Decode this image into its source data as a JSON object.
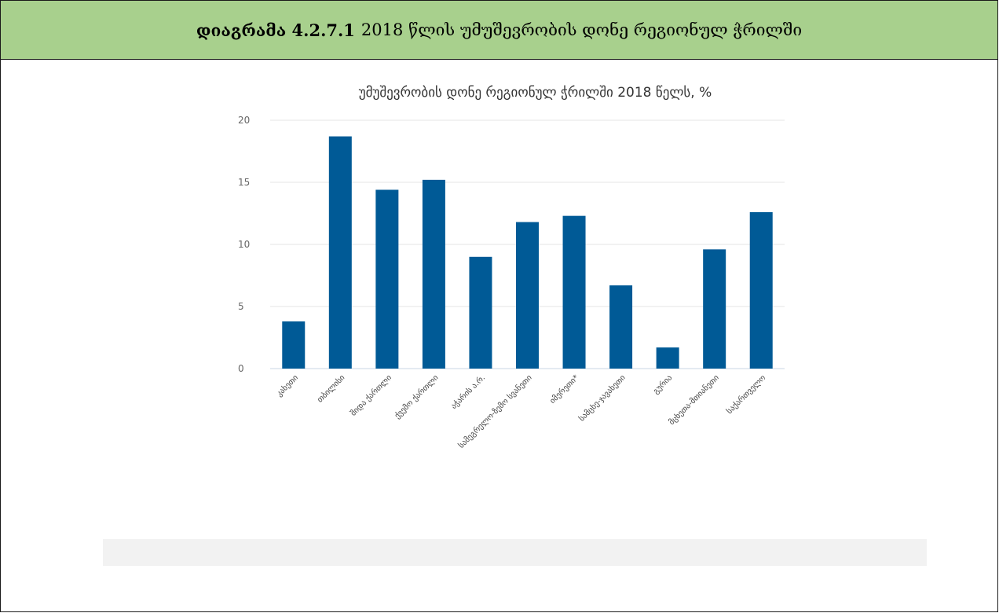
{
  "header": {
    "lead": "დიაგრამა 4.2.7.1",
    "text": "2018 წლის უმუშევრობის დონე რეგიონულ ჭრილში"
  },
  "colors": {
    "header_bg": "#a8d08d",
    "bar": "#005a96"
  },
  "chart_data": {
    "type": "bar",
    "title": "უმუშევრობის დონე რეგიონულ ჭრილში 2018 წელს, %",
    "categories": [
      "კახეთი",
      "თბილისი",
      "შიდა ქართლი",
      "ქვემო ქართლი",
      "აჭარის ა.რ.",
      "სამეგრელო-ზემო სვანეთი",
      "იმერეთი*",
      "სამცხე-ჯავახეთი",
      "გურია",
      "მცხეთა-მთიანეთი",
      "საქართველო"
    ],
    "values": [
      3.8,
      18.7,
      14.4,
      15.2,
      9.0,
      11.8,
      12.3,
      6.7,
      1.7,
      9.6,
      12.6
    ],
    "yticks": [
      "0",
      "5",
      "10",
      "15",
      "20"
    ],
    "ylim": [
      0,
      20
    ],
    "grid": true,
    "legend": "none"
  }
}
